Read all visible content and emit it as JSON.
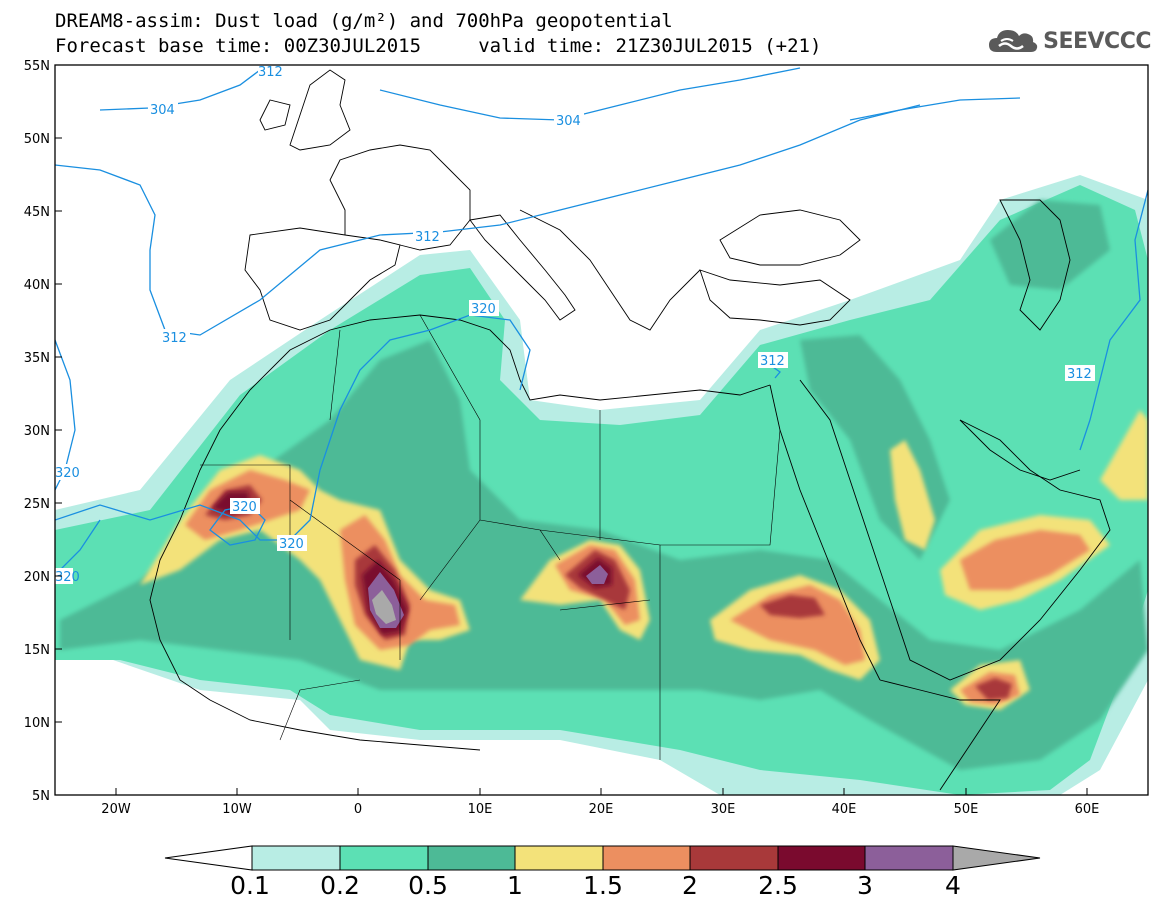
{
  "header": {
    "title_line1": "DREAM8-assim: Dust load (g/m²) and 700hPa geopotential",
    "title_line2": "Forecast base time: 00Z30JUL2015     valid time: 21Z30JUL2015 (+21)",
    "logo_text": "SEEVCCC"
  },
  "map": {
    "lon_range": [
      -25,
      65
    ],
    "lat_range": [
      5,
      55
    ],
    "lat_ticks": [
      "5N",
      "10N",
      "15N",
      "20N",
      "25N",
      "30N",
      "35N",
      "40N",
      "45N",
      "50N",
      "55N"
    ],
    "lon_ticks": [
      "20W",
      "10W",
      "0",
      "10E",
      "20E",
      "30E",
      "40E",
      "50E",
      "60E"
    ],
    "contour_labels": [
      "304",
      "304",
      "312",
      "312",
      "312",
      "320",
      "320",
      "320",
      "320",
      "320",
      "312",
      "312"
    ],
    "colors": {
      "contour": "#1a8fe0",
      "coast": "#000000",
      "ocean": "#ffffff"
    }
  },
  "colorbar": {
    "levels": [
      "0.1",
      "0.2",
      "0.5",
      "1",
      "1.5",
      "2",
      "2.5",
      "3",
      "4"
    ],
    "colors": [
      "#b8ede4",
      "#5ce0b4",
      "#4dba96",
      "#f3e27a",
      "#ec8f60",
      "#a8393a",
      "#7a0a2e",
      "#8c5f9a",
      "#a9a9a9"
    ]
  }
}
